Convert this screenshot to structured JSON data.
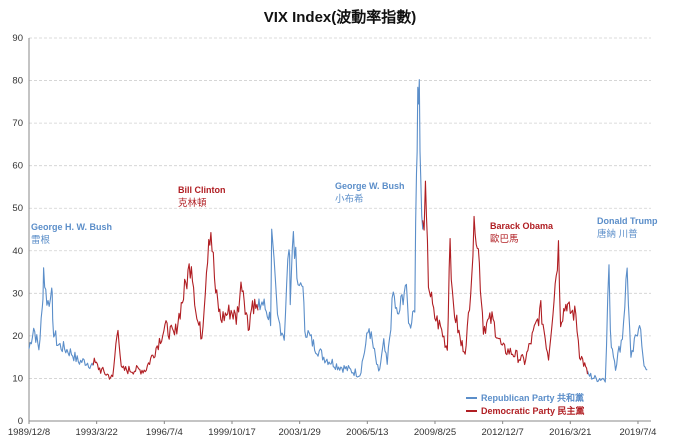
{
  "chart_data": {
    "type": "line",
    "title": "VIX Index(波動率指數)",
    "xlabel": "",
    "ylabel": "",
    "ylim": [
      0,
      90
    ],
    "y_ticks": [
      0,
      10,
      20,
      30,
      40,
      50,
      60,
      70,
      80,
      90
    ],
    "x_tick_labels": [
      "1989/12/8",
      "1993/3/22",
      "1996/7/4",
      "1999/10/17",
      "2003/1/29",
      "2006/5/13",
      "2009/8/25",
      "2012/12/7",
      "2016/3/21",
      "2019/7/4"
    ],
    "grid": true,
    "legend_position": "bottom-right",
    "colors": {
      "republican": "#5b8ec9",
      "democratic": "#b01e23"
    },
    "series": [
      {
        "name": "Republican Party 共和黨",
        "color": "#5b8ec9",
        "segments": [
          {
            "x": [
              "1989/12/8",
              "1990/3/1",
              "1990/6/1",
              "1990/8/1",
              "1990/8/24",
              "1990/10/1",
              "1990/12/1",
              "1991/1/15",
              "1991/2/1",
              "1991/5/1",
              "1991/9/1",
              "1992/1/1",
              "1992/5/1",
              "1992/9/1",
              "1993/1/20"
            ],
            "y": [
              17,
              22,
              17,
              26,
              36,
              30,
              27,
              34,
              22,
              18,
              17,
              16,
              14,
              14,
              13
            ]
          },
          {
            "x": [
              "2001/1/20",
              "2001/4/1",
              "2001/9/1",
              "2001/9/20",
              "2002/1/1",
              "2002/5/1",
              "2002/7/24",
              "2002/8/15",
              "2002/10/10",
              "2003/1/1",
              "2003/3/10",
              "2003/5/1",
              "2003/10/1",
              "2004/4/1",
              "2004/12/1",
              "2005/7/1",
              "2006/1/1",
              "2006/6/14",
              "2006/12/1",
              "2007/3/1",
              "2007/5/1",
              "2007/8/16",
              "2007/11/1",
              "2008/3/17",
              "2008/6/1",
              "2008/9/1",
              "2008/10/1",
              "2008/10/24",
              "2008/11/20",
              "2008/12/15",
              "2009/1/20"
            ],
            "y": [
              26,
              28,
              24,
              43,
              24,
              20,
              42,
              30,
              45,
              30,
              34,
              22,
              18,
              15,
              13,
              12,
              11,
              22,
              11,
              18,
              13,
              30,
              24,
              32,
              22,
              28,
              58,
              80,
              78,
              55,
              45
            ]
          },
          {
            "x": [
              "2017/1/20",
              "2017/6/1",
              "2017/12/1",
              "2018/2/5",
              "2018/3/1",
              "2018/6/1",
              "2018/10/1",
              "2018/12/24",
              "2019/3/1",
              "2019/5/1",
              "2019/8/1",
              "2019/10/1",
              "2019/12/15"
            ],
            "y": [
              11,
              10,
              10,
              37,
              20,
              13,
              20,
              36,
              14,
              18,
              24,
              14,
              12
            ]
          }
        ]
      },
      {
        "name": "Democratic Party 民主黨",
        "color": "#b01e23",
        "segments": [
          {
            "x": [
              "1993/1/20",
              "1993/6/1",
              "1994/1/1",
              "1994/4/4",
              "1994/6/1",
              "1995/1/1",
              "1995/8/1",
              "1996/1/1",
              "1996/7/15",
              "1997/1/1",
              "1997/10/27",
              "1998/2/1",
              "1998/5/1",
              "1998/8/31",
              "1998/10/8",
              "1999/1/1",
              "1999/4/1",
              "1999/10/1",
              "2000/1/1",
              "2000/4/14",
              "2000/8/1",
              "2000/10/15",
              "2001/1/20"
            ],
            "y": [
              14,
              12,
              10,
              23,
              12,
              12,
              12,
              16,
              22,
              20,
              38,
              24,
              20,
              44,
              45,
              30,
              24,
              26,
              24,
              33,
              22,
              28,
              26
            ]
          },
          {
            "x": [
              "2009/1/20",
              "2009/3/9",
              "2009/5/1",
              "2009/8/1",
              "2009/12/1",
              "2010/4/1",
              "2010/5/20",
              "2010/7/1",
              "2010/12/1",
              "2011/3/1",
              "2011/8/8",
              "2011/10/3",
              "2012/1/1",
              "2012/6/1",
              "2012/12/1",
              "2013/6/1",
              "2014/1/1",
              "2014/10/15",
              "2015/3/1",
              "2015/8/24",
              "2015/10/1",
              "2016/1/20",
              "2016/2/11",
              "2016/6/27",
              "2016/9/1",
              "2016/12/1",
              "2017/1/20"
            ],
            "y": [
              45,
              52,
              33,
              25,
              22,
              17,
              45,
              28,
              18,
              17,
              48,
              40,
              22,
              24,
              17,
              16,
              14,
              26,
              15,
              41,
              24,
              28,
              26,
              25,
              16,
              13,
              11
            ]
          }
        ]
      }
    ],
    "annotations": [
      {
        "party": "republican",
        "name_en": "George H. W. Bush",
        "name_zh": "雷根"
      },
      {
        "party": "democratic",
        "name_en": "Bill Clinton",
        "name_zh": "克林頓"
      },
      {
        "party": "republican",
        "name_en": "George W. Bush",
        "name_zh": "小布希"
      },
      {
        "party": "democratic",
        "name_en": "Barack Obama",
        "name_zh": "歐巴馬"
      },
      {
        "party": "republican",
        "name_en": "Donald Trump",
        "name_zh": "唐納 川普"
      }
    ]
  }
}
